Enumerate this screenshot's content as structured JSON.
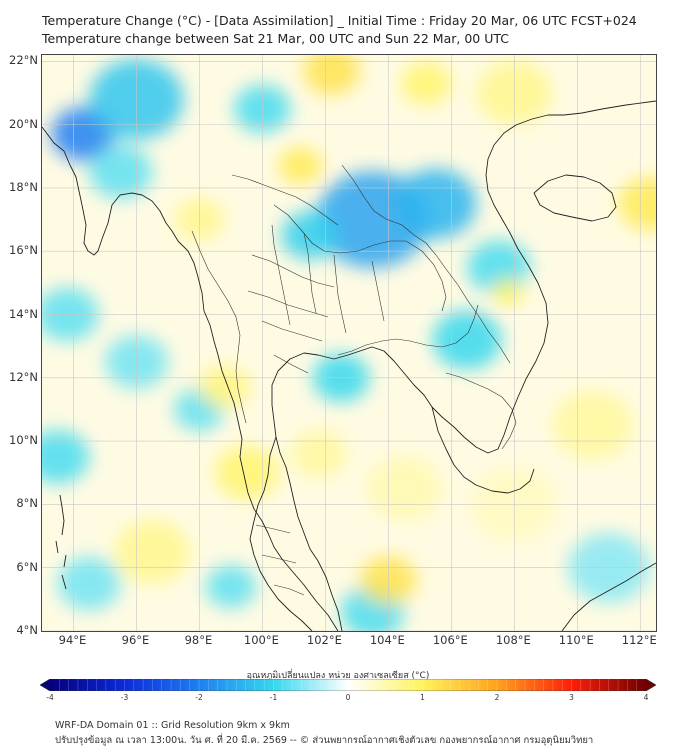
{
  "header": {
    "title_line1": "Temperature Change (°C) - [Data Assimilation] _ Initial Time : Friday 20 Mar, 06 UTC FCST+024",
    "title_line2": "Temperature change between Sat 21 Mar, 00 UTC and Sun 22 Mar, 00 UTC"
  },
  "map": {
    "lat_labels": [
      "22°N",
      "20°N",
      "18°N",
      "16°N",
      "14°N",
      "12°N",
      "10°N",
      "8°N",
      "6°N",
      "4°N"
    ],
    "lat_values": [
      22,
      20,
      18,
      16,
      14,
      12,
      10,
      8,
      6,
      4
    ],
    "lon_labels": [
      "94°E",
      "96°E",
      "98°E",
      "100°E",
      "102°E",
      "104°E",
      "106°E",
      "108°E",
      "110°E",
      "112°E"
    ],
    "lon_values": [
      94,
      96,
      98,
      100,
      102,
      104,
      106,
      108,
      110,
      112
    ],
    "lon_range": [
      93,
      112.5
    ],
    "lat_range": [
      4,
      22.2
    ],
    "field_blobs": [
      {
        "lon": 94.3,
        "lat": 19.7,
        "r": 1.0,
        "value": -2.0
      },
      {
        "lon": 96.0,
        "lat": 20.8,
        "r": 1.5,
        "value": -1.2
      },
      {
        "lon": 95.5,
        "lat": 18.5,
        "r": 1.0,
        "value": -0.8
      },
      {
        "lon": 103.5,
        "lat": 17.0,
        "r": 1.8,
        "value": -1.6
      },
      {
        "lon": 105.5,
        "lat": 17.5,
        "r": 1.3,
        "value": -1.4
      },
      {
        "lon": 101.5,
        "lat": 16.5,
        "r": 0.9,
        "value": -1.1
      },
      {
        "lon": 100.0,
        "lat": 20.5,
        "r": 0.9,
        "value": -0.9
      },
      {
        "lon": 107.5,
        "lat": 15.5,
        "r": 1.0,
        "value": -0.9
      },
      {
        "lon": 106.5,
        "lat": 13.2,
        "r": 1.1,
        "value": -1.0
      },
      {
        "lon": 102.5,
        "lat": 12.0,
        "r": 0.9,
        "value": -1.0
      },
      {
        "lon": 98.0,
        "lat": 11.0,
        "r": 0.8,
        "value": -0.8
      },
      {
        "lon": 93.8,
        "lat": 14.0,
        "r": 1.0,
        "value": -0.8
      },
      {
        "lon": 96.0,
        "lat": 12.5,
        "r": 1.0,
        "value": -0.7
      },
      {
        "lon": 93.5,
        "lat": 9.5,
        "r": 1.0,
        "value": -0.9
      },
      {
        "lon": 103.5,
        "lat": 4.6,
        "r": 1.0,
        "value": -0.9
      },
      {
        "lon": 99.0,
        "lat": 5.4,
        "r": 0.8,
        "value": -0.8
      },
      {
        "lon": 102.2,
        "lat": 21.7,
        "r": 0.9,
        "value": 1.2
      },
      {
        "lon": 101.2,
        "lat": 18.7,
        "r": 0.7,
        "value": 1.1
      },
      {
        "lon": 105.2,
        "lat": 21.3,
        "r": 0.8,
        "value": 0.9
      },
      {
        "lon": 112.3,
        "lat": 17.5,
        "r": 1.0,
        "value": 1.1
      },
      {
        "lon": 108.0,
        "lat": 21.0,
        "r": 1.2,
        "value": 0.7
      },
      {
        "lon": 104.5,
        "lat": 8.5,
        "r": 1.2,
        "value": 0.5
      },
      {
        "lon": 104.0,
        "lat": 5.6,
        "r": 0.9,
        "value": 1.2
      },
      {
        "lon": 99.5,
        "lat": 9.0,
        "r": 1.0,
        "value": 0.9
      },
      {
        "lon": 98.8,
        "lat": 11.7,
        "r": 0.8,
        "value": 0.8
      },
      {
        "lon": 101.8,
        "lat": 9.6,
        "r": 0.9,
        "value": 0.6
      },
      {
        "lon": 98.0,
        "lat": 17.0,
        "r": 0.8,
        "value": 0.7
      },
      {
        "lon": 107.8,
        "lat": 14.7,
        "r": 0.5,
        "value": 1.0
      },
      {
        "lon": 110.5,
        "lat": 10.5,
        "r": 1.3,
        "value": 0.6
      },
      {
        "lon": 96.5,
        "lat": 6.5,
        "r": 1.2,
        "value": 0.7
      },
      {
        "lon": 108.0,
        "lat": 8.0,
        "r": 1.4,
        "value": 0.4
      },
      {
        "lon": 111.0,
        "lat": 6.0,
        "r": 1.3,
        "value": -0.6
      },
      {
        "lon": 94.5,
        "lat": 5.5,
        "r": 1.0,
        "value": -0.7
      }
    ]
  },
  "colorbar": {
    "label": "อุณหภูมิเปลี่ยนแปลง หน่วย องศาเซลเซียส (°C)",
    "vmin": -4,
    "vmax": 4,
    "tick_labels": [
      "-4",
      "-3",
      "-2",
      "-1",
      "0",
      "1",
      "2",
      "3",
      "4"
    ],
    "tick_values": [
      -4,
      -3,
      -2,
      -1,
      0,
      1,
      2,
      3,
      4
    ],
    "stops": [
      {
        "value": -4,
        "color": "#05007a"
      },
      {
        "value": -3,
        "color": "#0a2ad9"
      },
      {
        "value": -2,
        "color": "#1f7ff2"
      },
      {
        "value": -1,
        "color": "#35d8ee"
      },
      {
        "value": 0,
        "color": "#ffffff"
      },
      {
        "value": 1,
        "color": "#fff35c"
      },
      {
        "value": 2,
        "color": "#ffa21c"
      },
      {
        "value": 3,
        "color": "#ff1e0a"
      },
      {
        "value": 4,
        "color": "#6e0000"
      }
    ]
  },
  "footer": {
    "line1": "WRF-DA Domain 01 :: Grid Resolution 9km x 9km",
    "line2": "ปรับปรุงข้อมูล ณ เวลา 13:00น. วัน ศ. ที่ 20 มี.ค. 2569 -- © ส่วนพยากรณ์อากาศเชิงตัวเลข กองพยากรณ์อากาศ กรมอุตุนิยมวิทยา"
  }
}
